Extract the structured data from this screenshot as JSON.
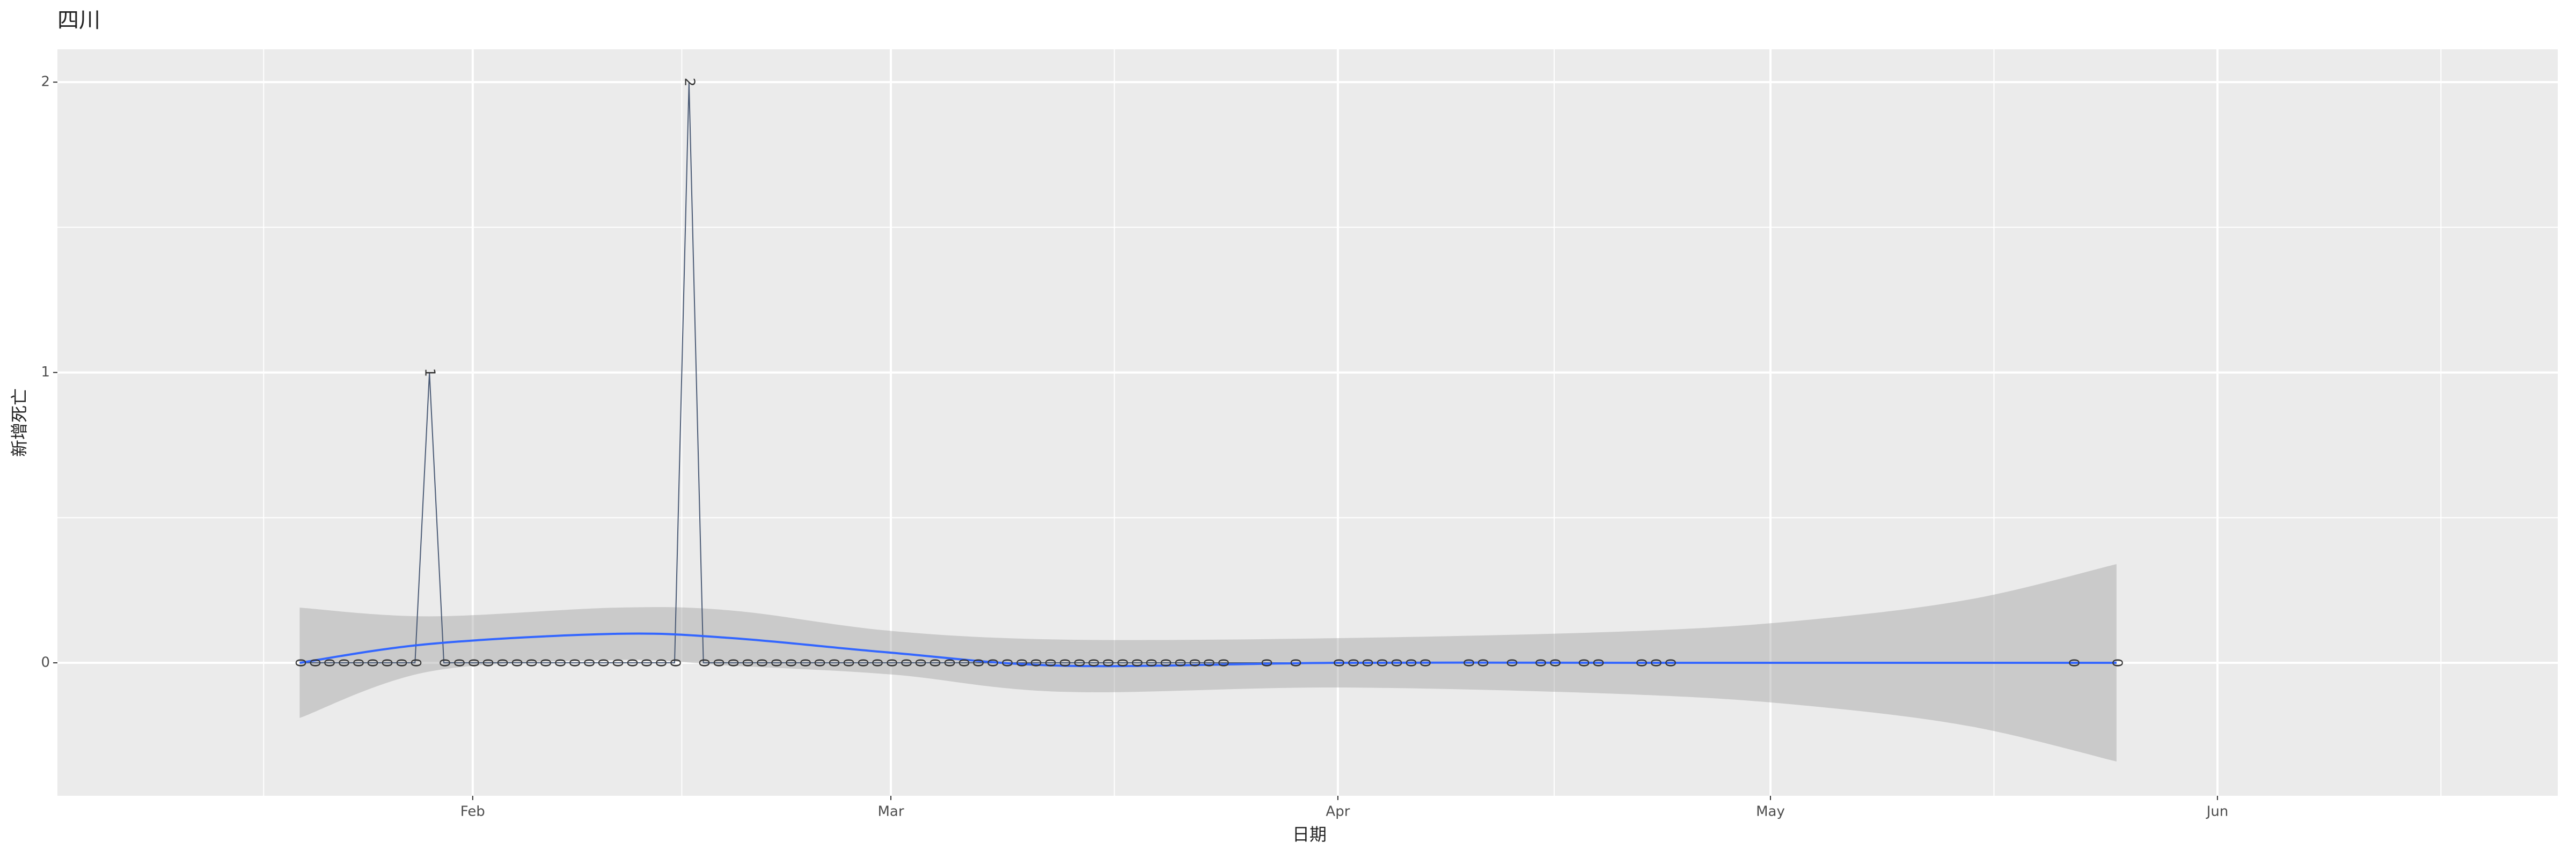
{
  "chart_data": {
    "type": "line",
    "title": "四川",
    "xlabel": "日期",
    "ylabel": "新增死亡",
    "x": [
      20,
      21,
      22,
      23,
      24,
      25,
      26,
      27,
      28,
      29,
      30,
      31,
      32,
      33,
      34,
      35,
      36,
      37,
      38,
      39,
      40,
      41,
      42,
      43,
      44,
      45,
      46,
      47,
      48,
      49,
      50,
      51,
      52,
      53,
      54,
      55,
      56,
      57,
      58,
      59,
      60,
      61,
      62,
      63,
      64,
      65,
      66,
      67,
      68,
      69,
      70,
      71,
      72,
      73,
      74,
      75,
      76,
      77,
      78,
      79,
      80,
      81,
      82,
      83,
      84,
      87,
      89,
      92,
      93,
      94,
      95,
      96,
      97,
      98,
      101,
      102,
      104,
      106,
      107,
      109,
      110,
      113,
      114,
      115,
      143,
      146
    ],
    "values": [
      0,
      0,
      0,
      0,
      0,
      0,
      0,
      0,
      0,
      1,
      0,
      0,
      0,
      0,
      0,
      0,
      0,
      0,
      0,
      0,
      0,
      0,
      0,
      0,
      0,
      0,
      0,
      2,
      0,
      0,
      0,
      0,
      0,
      0,
      0,
      0,
      0,
      0,
      0,
      0,
      0,
      0,
      0,
      0,
      0,
      0,
      0,
      0,
      0,
      0,
      0,
      0,
      0,
      0,
      0,
      0,
      0,
      0,
      0,
      0,
      0,
      0,
      0,
      0,
      0,
      0,
      0,
      0,
      0,
      0,
      0,
      0,
      0,
      0,
      0,
      0,
      0,
      0,
      0,
      0,
      0,
      0,
      0,
      0,
      0,
      0
    ],
    "color": "#4a5a75",
    "smooth": {
      "color": "#3366ff",
      "x": [
        20,
        29,
        42,
        50,
        61,
        73,
        92,
        113,
        125,
        136,
        146
      ],
      "values": [
        0,
        0.065,
        0.1,
        0.085,
        0.035,
        -0.01,
        0,
        0,
        0,
        0,
        0
      ],
      "upper": [
        0.19,
        0.16,
        0.19,
        0.18,
        0.11,
        0.08,
        0.085,
        0.11,
        0.15,
        0.22,
        0.34
      ],
      "lower": [
        -0.19,
        -0.03,
        0.01,
        -0.01,
        -0.04,
        -0.1,
        -0.085,
        -0.11,
        -0.15,
        -0.22,
        -0.34
      ]
    },
    "xlim": [
      3.2,
      176.6
    ],
    "xticks": [
      {
        "value": 32,
        "label": "Feb"
      },
      {
        "value": 61,
        "label": "Mar"
      },
      {
        "value": 92,
        "label": "Apr"
      },
      {
        "value": 122,
        "label": "May"
      },
      {
        "value": 153,
        "label": "Jun"
      }
    ],
    "ylim": [
      -0.458,
      2.113
    ],
    "yticks": [
      0,
      1,
      2
    ],
    "grid": true
  }
}
